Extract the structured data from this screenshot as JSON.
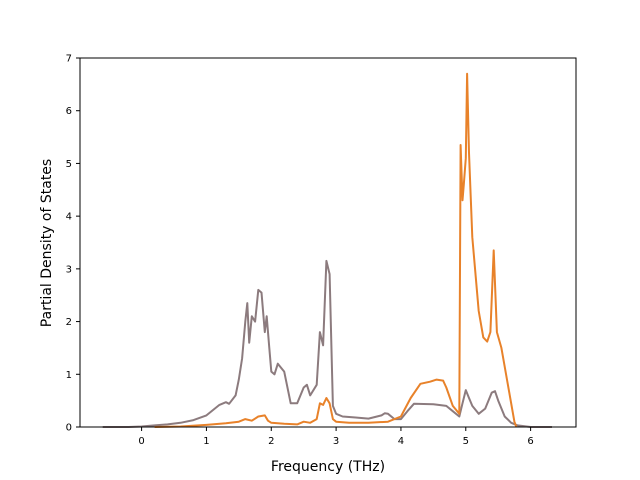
{
  "chart_data": {
    "type": "line",
    "title": "",
    "xlabel": "Frequency (THz)",
    "ylabel": "Partial Density of States",
    "xlim": [
      -0.95,
      6.7
    ],
    "ylim": [
      0,
      7
    ],
    "xticks": [
      "0",
      "1",
      "2",
      "3",
      "4",
      "5",
      "6"
    ],
    "yticks": [
      "0",
      "1",
      "2",
      "3",
      "4",
      "5",
      "6",
      "7"
    ],
    "grid": false,
    "legend": "none",
    "series": [
      {
        "color": "#8c7b7e",
        "points": [
          [
            -0.6,
            0
          ],
          [
            -0.2,
            0
          ],
          [
            0,
            0.01
          ],
          [
            0.2,
            0.03
          ],
          [
            0.4,
            0.05
          ],
          [
            0.6,
            0.08
          ],
          [
            0.8,
            0.13
          ],
          [
            1.0,
            0.22
          ],
          [
            1.1,
            0.32
          ],
          [
            1.2,
            0.42
          ],
          [
            1.3,
            0.47
          ],
          [
            1.35,
            0.44
          ],
          [
            1.45,
            0.6
          ],
          [
            1.5,
            0.9
          ],
          [
            1.55,
            1.3
          ],
          [
            1.6,
            2.0
          ],
          [
            1.63,
            2.35
          ],
          [
            1.66,
            1.6
          ],
          [
            1.7,
            2.1
          ],
          [
            1.75,
            2.0
          ],
          [
            1.8,
            2.6
          ],
          [
            1.85,
            2.55
          ],
          [
            1.9,
            1.8
          ],
          [
            1.93,
            2.1
          ],
          [
            1.97,
            1.5
          ],
          [
            2.0,
            1.05
          ],
          [
            2.05,
            1.0
          ],
          [
            2.1,
            1.2
          ],
          [
            2.2,
            1.05
          ],
          [
            2.3,
            0.45
          ],
          [
            2.4,
            0.45
          ],
          [
            2.5,
            0.75
          ],
          [
            2.55,
            0.8
          ],
          [
            2.6,
            0.6
          ],
          [
            2.7,
            0.8
          ],
          [
            2.75,
            1.8
          ],
          [
            2.8,
            1.55
          ],
          [
            2.85,
            3.15
          ],
          [
            2.9,
            2.9
          ],
          [
            2.95,
            0.4
          ],
          [
            3.0,
            0.25
          ],
          [
            3.1,
            0.2
          ],
          [
            3.3,
            0.18
          ],
          [
            3.5,
            0.16
          ],
          [
            3.7,
            0.22
          ],
          [
            3.75,
            0.26
          ],
          [
            3.8,
            0.25
          ],
          [
            3.9,
            0.15
          ],
          [
            4.0,
            0.15
          ],
          [
            4.1,
            0.3
          ],
          [
            4.2,
            0.44
          ],
          [
            4.5,
            0.43
          ],
          [
            4.7,
            0.4
          ],
          [
            4.8,
            0.3
          ],
          [
            4.9,
            0.2
          ],
          [
            4.95,
            0.45
          ],
          [
            5.0,
            0.7
          ],
          [
            5.05,
            0.55
          ],
          [
            5.1,
            0.4
          ],
          [
            5.2,
            0.25
          ],
          [
            5.3,
            0.35
          ],
          [
            5.4,
            0.65
          ],
          [
            5.45,
            0.68
          ],
          [
            5.5,
            0.5
          ],
          [
            5.6,
            0.2
          ],
          [
            5.7,
            0.08
          ],
          [
            5.8,
            0.03
          ],
          [
            6.0,
            0
          ],
          [
            6.33,
            0
          ]
        ]
      },
      {
        "color": "#e8822a",
        "points": [
          [
            0.2,
            0
          ],
          [
            0.6,
            0.01
          ],
          [
            1.0,
            0.04
          ],
          [
            1.3,
            0.07
          ],
          [
            1.5,
            0.1
          ],
          [
            1.6,
            0.15
          ],
          [
            1.7,
            0.12
          ],
          [
            1.8,
            0.2
          ],
          [
            1.9,
            0.22
          ],
          [
            1.95,
            0.12
          ],
          [
            2.0,
            0.08
          ],
          [
            2.2,
            0.06
          ],
          [
            2.4,
            0.05
          ],
          [
            2.5,
            0.1
          ],
          [
            2.6,
            0.08
          ],
          [
            2.7,
            0.15
          ],
          [
            2.75,
            0.45
          ],
          [
            2.8,
            0.42
          ],
          [
            2.85,
            0.55
          ],
          [
            2.9,
            0.45
          ],
          [
            2.95,
            0.15
          ],
          [
            3.0,
            0.1
          ],
          [
            3.2,
            0.08
          ],
          [
            3.5,
            0.08
          ],
          [
            3.8,
            0.1
          ],
          [
            4.0,
            0.2
          ],
          [
            4.15,
            0.55
          ],
          [
            4.3,
            0.82
          ],
          [
            4.45,
            0.86
          ],
          [
            4.55,
            0.9
          ],
          [
            4.65,
            0.88
          ],
          [
            4.7,
            0.75
          ],
          [
            4.8,
            0.4
          ],
          [
            4.9,
            0.25
          ],
          [
            4.92,
            5.35
          ],
          [
            4.95,
            4.3
          ],
          [
            4.97,
            4.6
          ],
          [
            5.0,
            5.1
          ],
          [
            5.02,
            6.7
          ],
          [
            5.05,
            5.2
          ],
          [
            5.1,
            3.6
          ],
          [
            5.2,
            2.2
          ],
          [
            5.27,
            1.7
          ],
          [
            5.33,
            1.62
          ],
          [
            5.38,
            1.8
          ],
          [
            5.43,
            3.35
          ],
          [
            5.48,
            1.8
          ],
          [
            5.55,
            1.5
          ],
          [
            5.65,
            0.8
          ],
          [
            5.75,
            0.1
          ],
          [
            5.78,
            0
          ]
        ]
      }
    ]
  }
}
